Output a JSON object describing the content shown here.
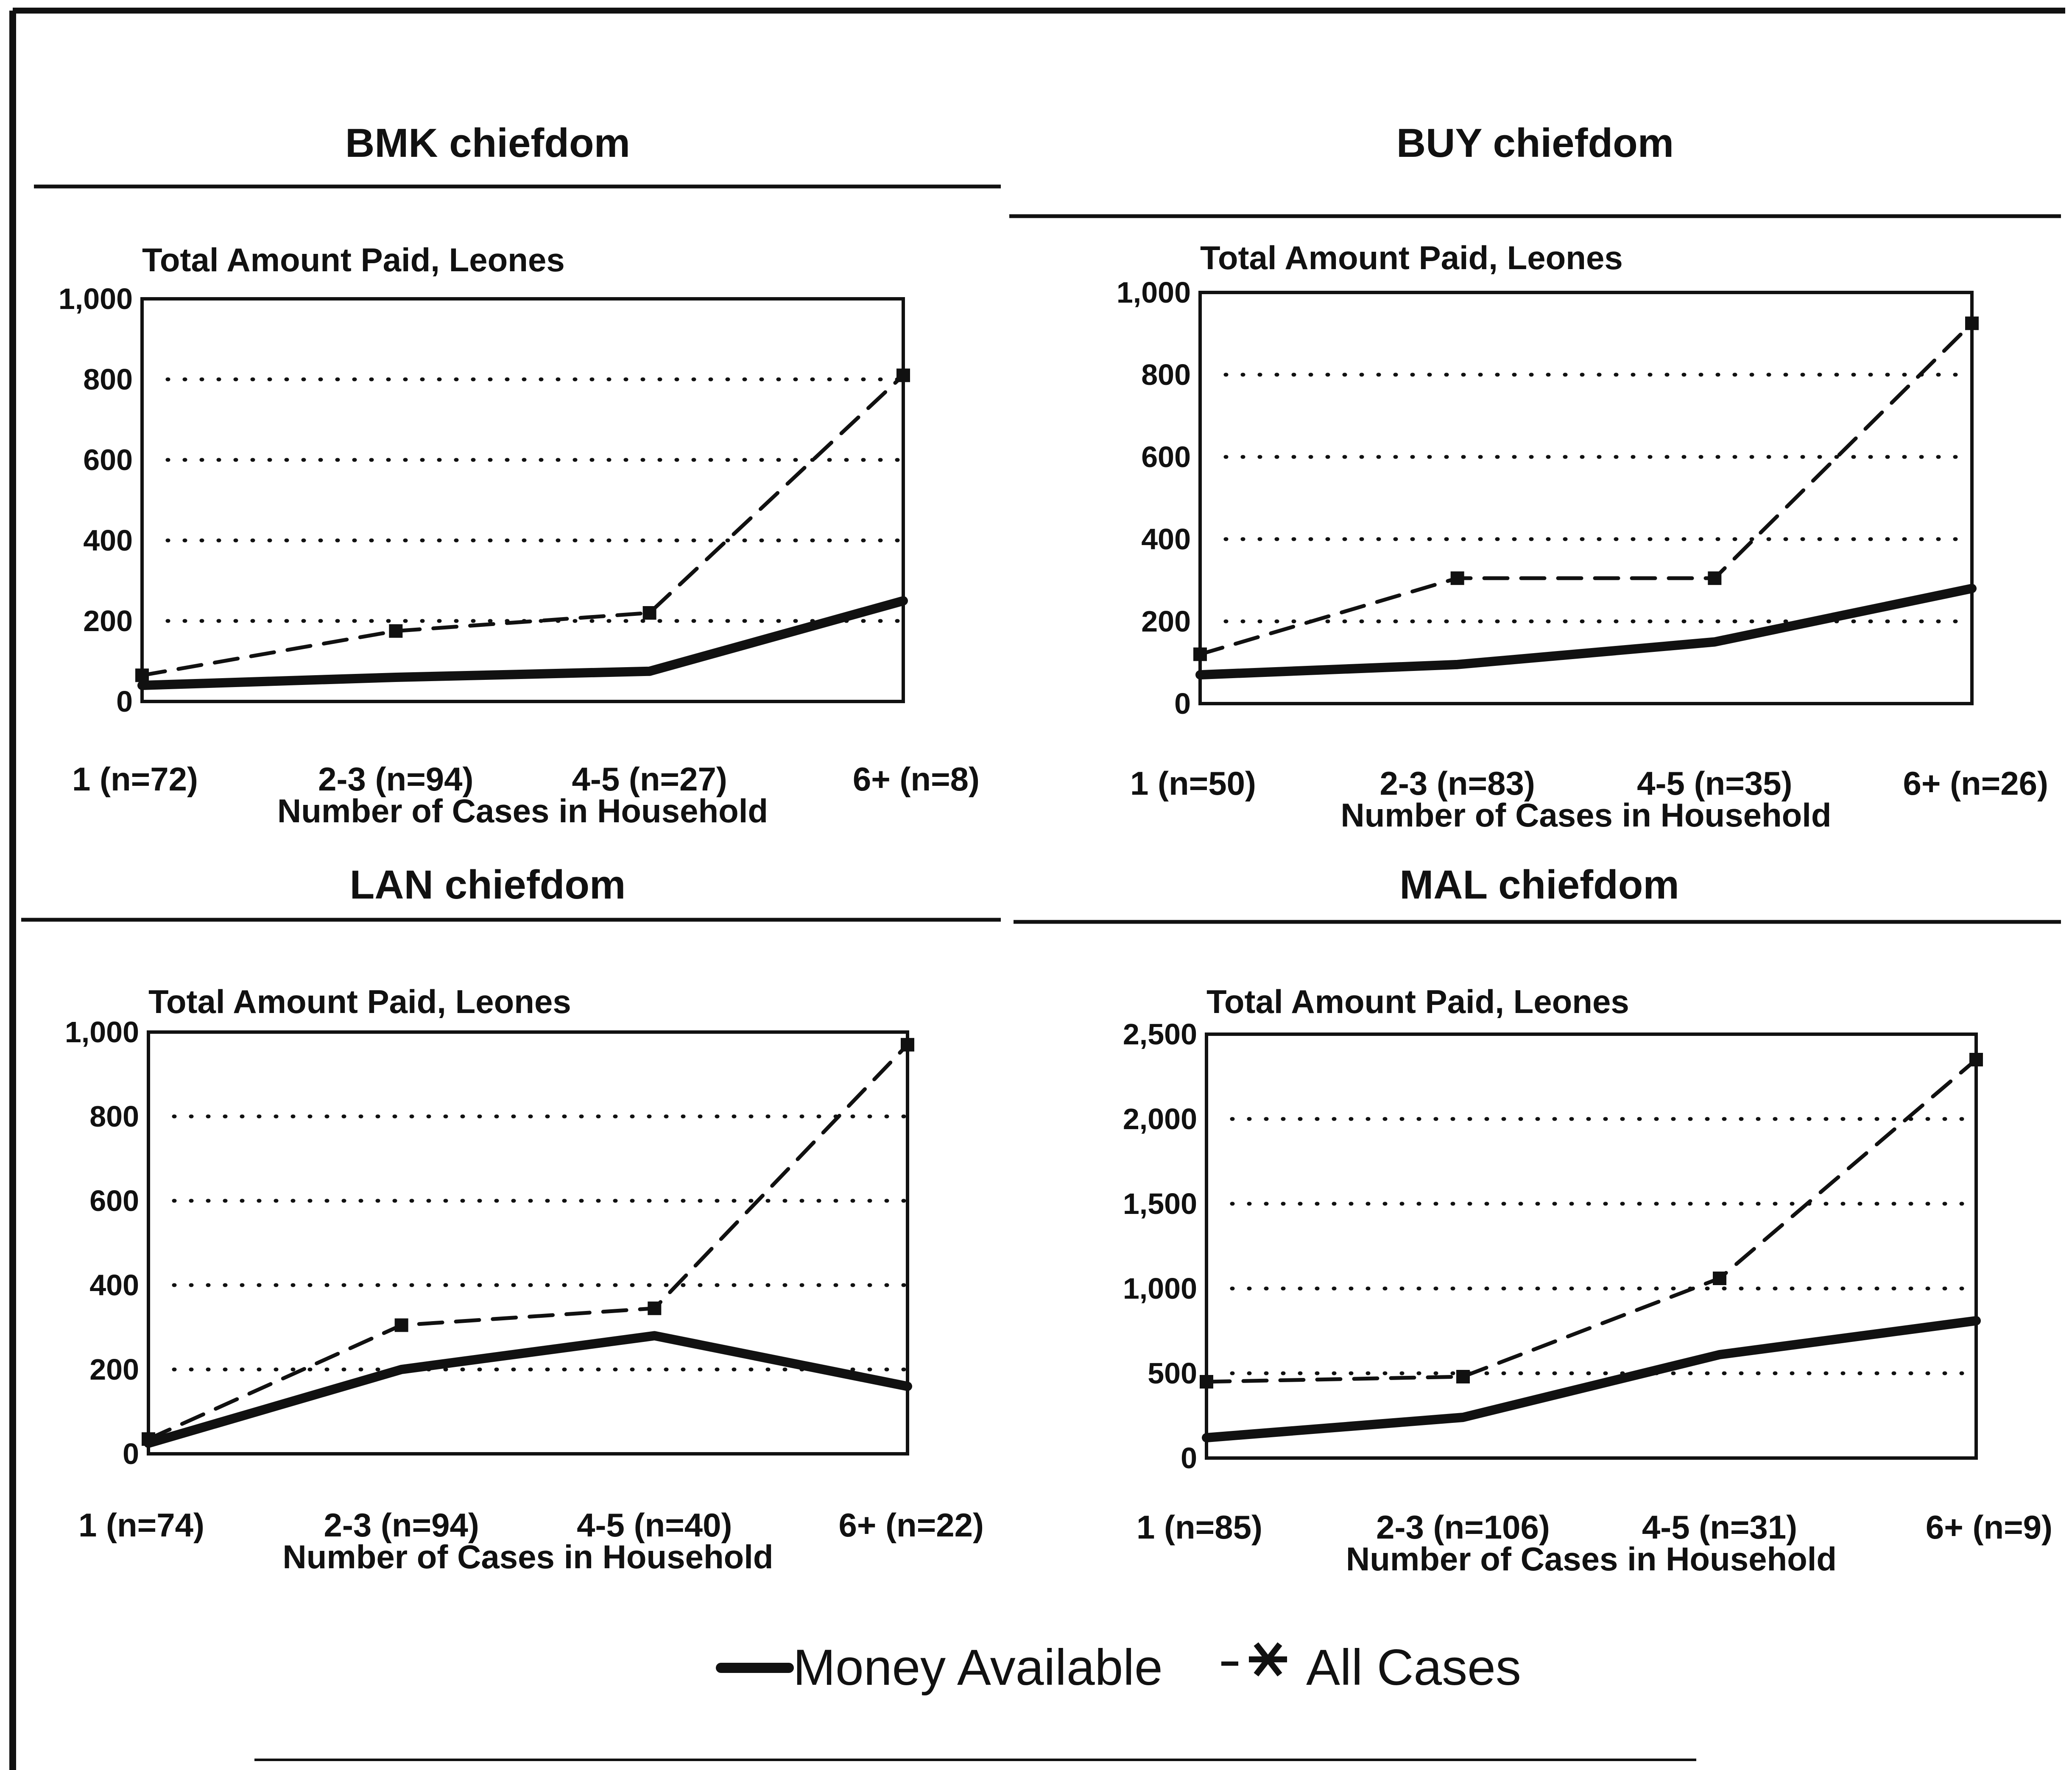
{
  "chart_data": [
    {
      "type": "line",
      "title": "BMK chiefdom",
      "ylabel": "Total Amount Paid, Leones",
      "xlabel": "Number of Cases in Household",
      "categories": [
        "1 (n=72)",
        "2-3 (n=94)",
        "4-5 (n=27)",
        "6+ (n=8)"
      ],
      "ylim": [
        0,
        1000
      ],
      "yticks": [
        "0",
        "200",
        "400",
        "600",
        "800",
        "1,000"
      ],
      "grid": true,
      "series": [
        {
          "name": "Money Available",
          "style": "solid",
          "values": [
            40,
            60,
            75,
            250
          ]
        },
        {
          "name": "All Cases",
          "style": "dashed",
          "values": [
            65,
            175,
            220,
            810
          ]
        }
      ]
    },
    {
      "type": "line",
      "title": "BUY chiefdom",
      "ylabel": "Total Amount Paid, Leones",
      "xlabel": "Number of Cases in Household",
      "categories": [
        "1 (n=50)",
        "2-3 (n=83)",
        "4-5 (n=35)",
        "6+ (n=26)"
      ],
      "ylim": [
        0,
        1000
      ],
      "yticks": [
        "0",
        "200",
        "400",
        "600",
        "800",
        "1,000"
      ],
      "grid": true,
      "series": [
        {
          "name": "Money Available",
          "style": "solid",
          "values": [
            70,
            95,
            150,
            280
          ]
        },
        {
          "name": "All Cases",
          "style": "dashed",
          "values": [
            120,
            305,
            305,
            925
          ]
        }
      ]
    },
    {
      "type": "line",
      "title": "LAN chiefdom",
      "ylabel": "Total Amount Paid, Leones",
      "xlabel": "Number of Cases in Household",
      "categories": [
        "1 (n=74)",
        "2-3 (n=94)",
        "4-5 (n=40)",
        "6+ (n=22)"
      ],
      "ylim": [
        0,
        1000
      ],
      "yticks": [
        "0",
        "200",
        "400",
        "600",
        "800",
        "1,000"
      ],
      "grid": true,
      "series": [
        {
          "name": "Money Available",
          "style": "solid",
          "values": [
            25,
            200,
            280,
            160
          ]
        },
        {
          "name": "All Cases",
          "style": "dashed",
          "values": [
            35,
            305,
            345,
            970
          ]
        }
      ]
    },
    {
      "type": "line",
      "title": "MAL chiefdom",
      "ylabel": "Total Amount Paid, Leones",
      "xlabel": "Number of Cases in Household",
      "categories": [
        "1 (n=85)",
        "2-3 (n=106)",
        "4-5 (n=31)",
        "6+ (n=9)"
      ],
      "ylim": [
        0,
        2500
      ],
      "yticks": [
        "0",
        "500",
        "1,000",
        "1,500",
        "2,000",
        "2,500"
      ],
      "grid": true,
      "series": [
        {
          "name": "Money Available",
          "style": "solid",
          "values": [
            120,
            240,
            610,
            810
          ]
        },
        {
          "name": "All Cases",
          "style": "dashed",
          "values": [
            450,
            480,
            1060,
            2350
          ]
        }
      ]
    }
  ],
  "legend": {
    "placement": "bottom-center",
    "items": [
      {
        "label": "Money Available",
        "style": "solid"
      },
      {
        "label": "All Cases",
        "style": "dashed"
      }
    ]
  },
  "colors": {
    "ink": "#111111",
    "background": "#ffffff"
  }
}
